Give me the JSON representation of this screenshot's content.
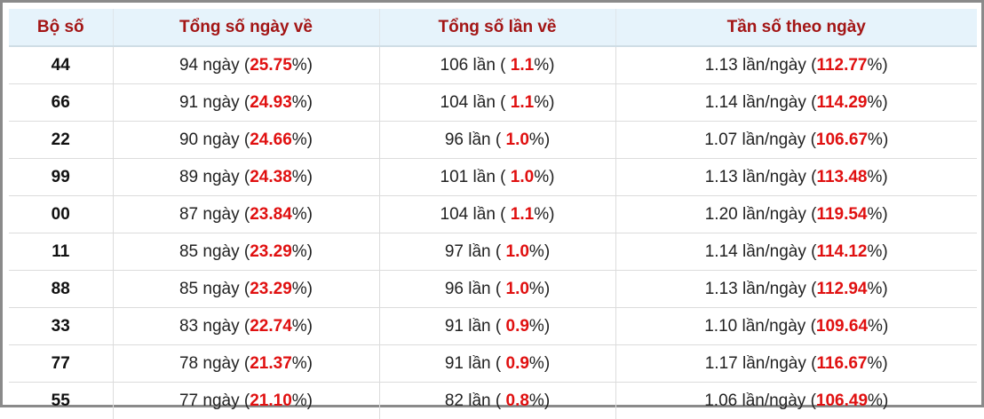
{
  "table": {
    "headers": [
      "Bộ số",
      "Tổng số ngày về",
      "Tổng số lần về",
      "Tần số theo ngày"
    ],
    "rows": [
      [
        "44",
        [
          "94 ngày (",
          "25.75",
          "%)"
        ],
        [
          "106 lần ( ",
          "1.1",
          "%)"
        ],
        [
          "1.13 lần/ngày (",
          "112.77",
          "%)"
        ]
      ],
      [
        "66",
        [
          "91 ngày (",
          "24.93",
          "%)"
        ],
        [
          "104 lần ( ",
          "1.1",
          "%)"
        ],
        [
          "1.14 lần/ngày (",
          "114.29",
          "%)"
        ]
      ],
      [
        "22",
        [
          "90 ngày (",
          "24.66",
          "%)"
        ],
        [
          "96 lần ( ",
          "1.0",
          "%)"
        ],
        [
          "1.07 lần/ngày (",
          "106.67",
          "%)"
        ]
      ],
      [
        "99",
        [
          "89 ngày (",
          "24.38",
          "%)"
        ],
        [
          "101 lần ( ",
          "1.0",
          "%)"
        ],
        [
          "1.13 lần/ngày (",
          "113.48",
          "%)"
        ]
      ],
      [
        "00",
        [
          "87 ngày (",
          "23.84",
          "%)"
        ],
        [
          "104 lần ( ",
          "1.1",
          "%)"
        ],
        [
          "1.20 lần/ngày (",
          "119.54",
          "%)"
        ]
      ],
      [
        "11",
        [
          "85 ngày (",
          "23.29",
          "%)"
        ],
        [
          "97 lần ( ",
          "1.0",
          "%)"
        ],
        [
          "1.14 lần/ngày (",
          "114.12",
          "%)"
        ]
      ],
      [
        "88",
        [
          "85 ngày (",
          "23.29",
          "%)"
        ],
        [
          "96 lần ( ",
          "1.0",
          "%)"
        ],
        [
          "1.13 lần/ngày (",
          "112.94",
          "%)"
        ]
      ],
      [
        "33",
        [
          "83 ngày (",
          "22.74",
          "%)"
        ],
        [
          "91 lần ( ",
          "0.9",
          "%)"
        ],
        [
          "1.10 lần/ngày (",
          "109.64",
          "%)"
        ]
      ],
      [
        "77",
        [
          "78 ngày (",
          "21.37",
          "%)"
        ],
        [
          "91 lần ( ",
          "0.9",
          "%)"
        ],
        [
          "1.17 lần/ngày (",
          "116.67",
          "%)"
        ]
      ],
      [
        "55",
        [
          "77 ngày (",
          "21.10",
          "%)"
        ],
        [
          "82 lần ( ",
          "0.8",
          "%)"
        ],
        [
          "1.06 lần/ngày (",
          "106.49",
          "%)"
        ]
      ]
    ]
  }
}
